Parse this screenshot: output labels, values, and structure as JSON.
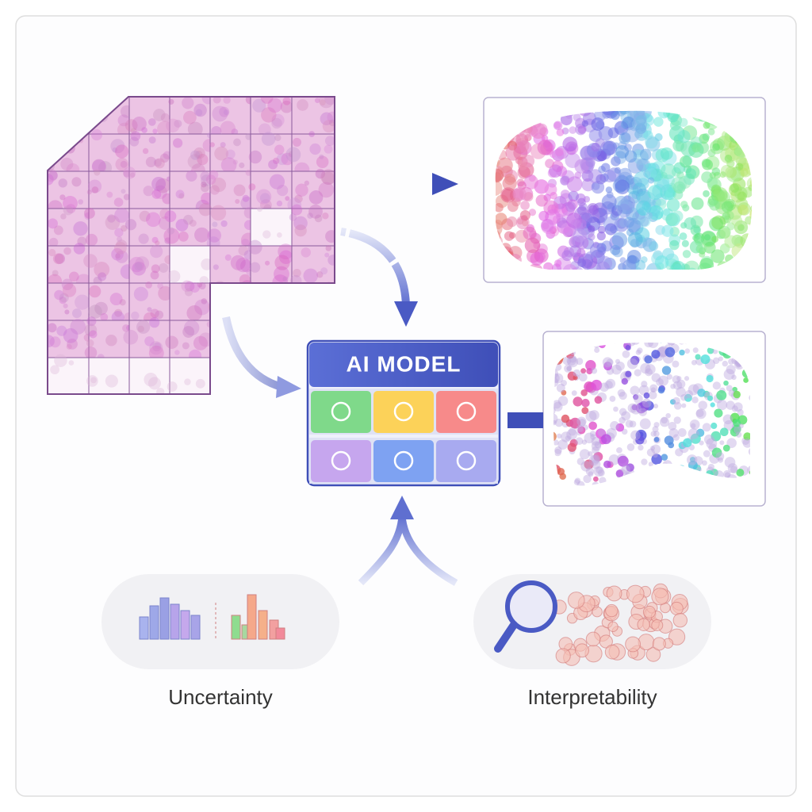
{
  "model": {
    "label": "AI MODEL"
  },
  "panels": [
    {
      "label": "Uncertainty"
    },
    {
      "label": "Interpretability"
    }
  ]
}
